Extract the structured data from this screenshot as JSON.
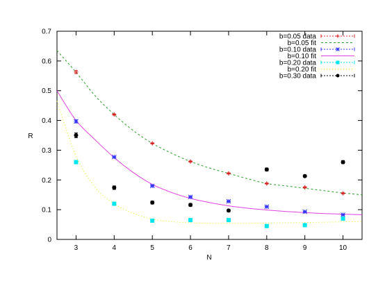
{
  "chart_data": {
    "type": "scatter",
    "xlabel": "N",
    "ylabel": "R",
    "xlim": [
      2.5,
      10.5
    ],
    "ylim": [
      0,
      0.7
    ],
    "xticks": [
      3,
      4,
      5,
      6,
      7,
      8,
      9,
      10
    ],
    "yticks": [
      0,
      0.1,
      0.2,
      0.3,
      0.4,
      0.5,
      0.6,
      0.7
    ],
    "ytick_labels": [
      "0",
      "0.1",
      "0.2",
      "0.3",
      "0.4",
      "0.5",
      "0.6",
      "0.7"
    ],
    "grid": false,
    "legend_position": "top-right",
    "legend": [
      "b=0.05 data",
      "b=0.05 fit",
      "b=0.10 data",
      "b=0.10 fit",
      "b=0.20 data",
      "b=0.20 fit",
      "b=0.30 data"
    ],
    "series": [
      {
        "name": "b=0.05 data",
        "kind": "data",
        "marker": "plus",
        "color": "#d62728",
        "x": [
          3,
          4,
          5,
          6,
          7,
          8,
          9,
          10
        ],
        "y": [
          0.563,
          0.42,
          0.323,
          0.262,
          0.222,
          0.188,
          0.175,
          0.155
        ],
        "err": [
          0.005,
          0.002,
          0.002,
          0.002,
          0.002,
          0.002,
          0.002,
          0.002
        ]
      },
      {
        "name": "b=0.05 fit",
        "kind": "fit",
        "color": "#2ca02c",
        "dash": "3,3",
        "x": [
          2.5,
          3,
          3.5,
          4,
          4.5,
          5,
          5.5,
          6,
          6.5,
          7,
          7.5,
          8,
          8.5,
          9,
          9.5,
          10,
          10.5
        ],
        "y": [
          0.635,
          0.562,
          0.483,
          0.42,
          0.366,
          0.323,
          0.29,
          0.262,
          0.24,
          0.222,
          0.204,
          0.188,
          0.18,
          0.172,
          0.164,
          0.156,
          0.15
        ]
      },
      {
        "name": "b=0.10 data",
        "kind": "data",
        "marker": "star",
        "color": "#3333ff",
        "x": [
          3,
          4,
          5,
          6,
          7,
          8,
          9,
          10
        ],
        "y": [
          0.397,
          0.277,
          0.18,
          0.143,
          0.128,
          0.11,
          0.093,
          0.083
        ],
        "err": [
          0.005,
          0.002,
          0.002,
          0.002,
          0.002,
          0.002,
          0.002,
          0.002
        ]
      },
      {
        "name": "b=0.10 fit",
        "kind": "fit",
        "color": "#e040e0",
        "dash": "",
        "x": [
          2.5,
          3,
          3.5,
          4,
          4.5,
          5,
          5.5,
          6,
          6.5,
          7,
          7.5,
          8,
          8.5,
          9,
          9.5,
          10,
          10.5
        ],
        "y": [
          0.5,
          0.4,
          0.335,
          0.275,
          0.225,
          0.185,
          0.158,
          0.138,
          0.124,
          0.113,
          0.105,
          0.099,
          0.094,
          0.09,
          0.087,
          0.085,
          0.083
        ]
      },
      {
        "name": "b=0.20 data",
        "kind": "data",
        "marker": "square",
        "color": "#00e5ee",
        "x": [
          3,
          4,
          5,
          6,
          7,
          8,
          9,
          10
        ],
        "y": [
          0.26,
          0.12,
          0.063,
          0.065,
          0.065,
          0.045,
          0.048,
          0.07
        ],
        "err": [
          0.004,
          0.003,
          0.003,
          0.003,
          0.003,
          0.003,
          0.003,
          0.003
        ]
      },
      {
        "name": "b=0.20 fit",
        "kind": "fit",
        "color": "#e8e800",
        "dash": "1,3",
        "x": [
          2.5,
          3,
          3.5,
          4,
          4.5,
          5,
          5.5,
          6,
          6.5,
          7,
          7.5,
          8,
          8.5,
          9,
          9.5,
          10,
          10.5
        ],
        "y": [
          0.465,
          0.28,
          0.175,
          0.12,
          0.088,
          0.068,
          0.06,
          0.056,
          0.054,
          0.054,
          0.054,
          0.055,
          0.056,
          0.057,
          0.058,
          0.059,
          0.06
        ]
      },
      {
        "name": "b=0.30 data",
        "kind": "data",
        "marker": "circle",
        "color": "#000000",
        "x": [
          3,
          4,
          5,
          6,
          7,
          8,
          9,
          10
        ],
        "y": [
          0.35,
          0.174,
          0.124,
          0.116,
          0.097,
          0.235,
          0.213,
          0.26
        ],
        "err": [
          0.008,
          0.006,
          0.005,
          0.005,
          0.004,
          0.005,
          0.004,
          0.005
        ]
      }
    ]
  }
}
